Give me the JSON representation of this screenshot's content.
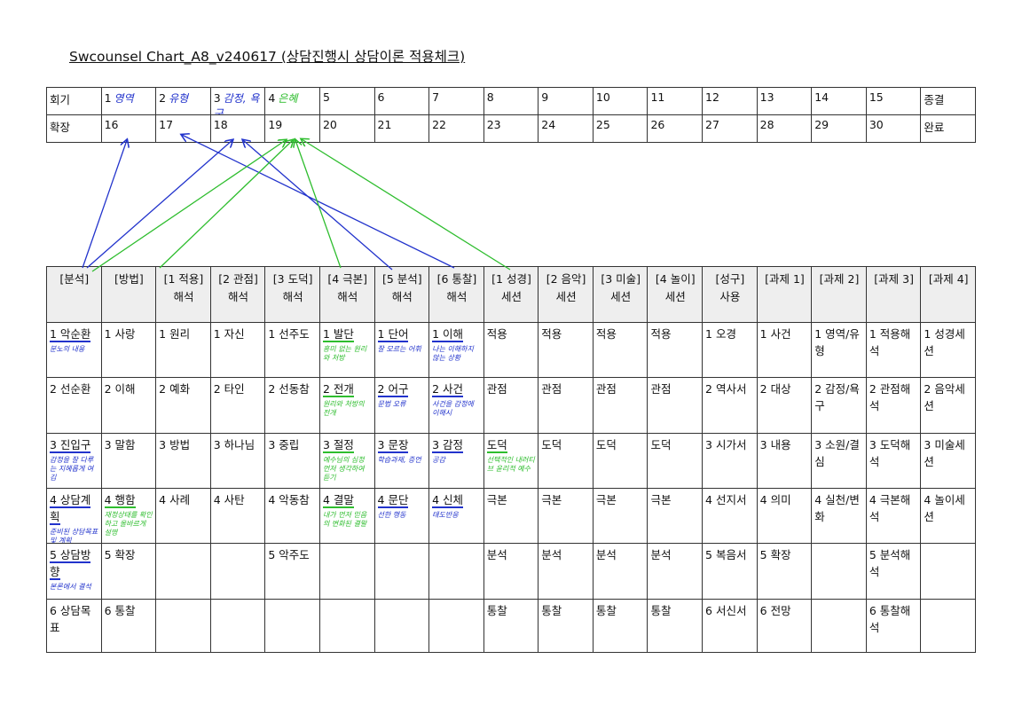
{
  "title": "Swcounsel Chart_A8_v240617 (상담진행시 상담이론 적용체크)",
  "colors": {
    "blue": "#2233cc",
    "green": "#2ebd2e"
  },
  "session_table": {
    "rows": [
      [
        {
          "text": "회기"
        },
        {
          "text": "1",
          "hand": "영역",
          "hand_color": "blue"
        },
        {
          "text": "2",
          "hand": "유형",
          "hand_color": "blue"
        },
        {
          "text": "3",
          "hand": "감정, 욕구",
          "hand_color": "blue"
        },
        {
          "text": "4",
          "hand": "은혜",
          "hand_color": "green"
        },
        {
          "text": "5"
        },
        {
          "text": "6"
        },
        {
          "text": "7"
        },
        {
          "text": "8"
        },
        {
          "text": "9"
        },
        {
          "text": "10"
        },
        {
          "text": "11"
        },
        {
          "text": "12"
        },
        {
          "text": "13"
        },
        {
          "text": "14"
        },
        {
          "text": "15"
        },
        {
          "text": "종결"
        }
      ],
      [
        {
          "text": "확장"
        },
        {
          "text": "16"
        },
        {
          "text": "17"
        },
        {
          "text": "18"
        },
        {
          "text": "19"
        },
        {
          "text": "20"
        },
        {
          "text": "21"
        },
        {
          "text": "22"
        },
        {
          "text": "23"
        },
        {
          "text": "24"
        },
        {
          "text": "25"
        },
        {
          "text": "26"
        },
        {
          "text": "27"
        },
        {
          "text": "28"
        },
        {
          "text": "29"
        },
        {
          "text": "30"
        },
        {
          "text": "완료"
        }
      ]
    ]
  },
  "main_table": {
    "header": [
      [
        "[분석]"
      ],
      [
        "[방법]"
      ],
      [
        "[1 적용]",
        "해석"
      ],
      [
        "[2 관점]",
        "해석"
      ],
      [
        "[3 도덕]",
        "해석"
      ],
      [
        "[4 극본]",
        "해석"
      ],
      [
        "[5 분석]",
        "해석"
      ],
      [
        "[6 통찰]",
        "해석"
      ],
      [
        "[1 성경]",
        "세션"
      ],
      [
        "[2 음악]",
        "세션"
      ],
      [
        "[3 미술]",
        "세션"
      ],
      [
        "[4 놀이]",
        "세션"
      ],
      [
        "[성구]",
        "사용"
      ],
      [
        "[과제 1]"
      ],
      [
        "[과제 2]"
      ],
      [
        "[과제 3]"
      ],
      [
        "[과제 4]"
      ]
    ],
    "rows": [
      [
        {
          "text": "1 악순환",
          "note": "분노의 내용",
          "note_color": "blue"
        },
        {
          "text": "1 사랑"
        },
        {
          "text": "1 원리"
        },
        {
          "text": "1 자신"
        },
        {
          "text": "1 선주도"
        },
        {
          "text": "1 발단",
          "note": "흥미 없는 원리와 처방",
          "note_color": "green"
        },
        {
          "text": "1 단어",
          "note": "잘 모르는 어휘",
          "note_color": "blue"
        },
        {
          "text": "1 이해",
          "note": "나는 이해하지 않는 상황",
          "note_color": "blue"
        },
        {
          "text": "적용"
        },
        {
          "text": "적용"
        },
        {
          "text": "적용"
        },
        {
          "text": "적용"
        },
        {
          "text": "1 오경"
        },
        {
          "text": "1 사건"
        },
        {
          "text": "1 영역/유형"
        },
        {
          "text": "1 적용해석"
        },
        {
          "text": "1 성경세션"
        }
      ],
      [
        {
          "text": "2 선순환"
        },
        {
          "text": "2 이해"
        },
        {
          "text": "2 예화"
        },
        {
          "text": "2 타인"
        },
        {
          "text": "2 선동참"
        },
        {
          "text": "2 전개",
          "note": "원리와 처방의 전개",
          "note_color": "green"
        },
        {
          "text": "2 어구",
          "note": "문법 오류",
          "note_color": "blue"
        },
        {
          "text": "2 사건",
          "note": "사건을 감정에 이해시",
          "note_color": "blue"
        },
        {
          "text": "관점"
        },
        {
          "text": "관점"
        },
        {
          "text": "관점"
        },
        {
          "text": "관점"
        },
        {
          "text": "2 역사서"
        },
        {
          "text": "2 대상"
        },
        {
          "text": "2 감정/욕구"
        },
        {
          "text": "2 관점해석"
        },
        {
          "text": "2 음악세션"
        }
      ],
      [
        {
          "text": "3 진입구",
          "note": "감정을 잘 다루는 지혜롭게 여김",
          "note_color": "blue"
        },
        {
          "text": "3 말함"
        },
        {
          "text": "3 방법"
        },
        {
          "text": "3 하나님"
        },
        {
          "text": "3 중립"
        },
        {
          "text": "3 절정",
          "note": "예수님의 심정 먼저 생각하여 듣기",
          "note_color": "green"
        },
        {
          "text": "3 문장",
          "note": "학습과제, 증언",
          "note_color": "blue"
        },
        {
          "text": "3 감정",
          "note": "공감",
          "note_color": "blue"
        },
        {
          "text": "도덕",
          "note": "선택적인 내러티브 윤리적 예수",
          "note_color": "green"
        },
        {
          "text": "도덕"
        },
        {
          "text": "도덕"
        },
        {
          "text": "도덕"
        },
        {
          "text": "3 시가서"
        },
        {
          "text": "3 내용"
        },
        {
          "text": "3 소원/결심"
        },
        {
          "text": "3 도덕해석"
        },
        {
          "text": "3 미술세션"
        }
      ],
      [
        {
          "text": "4 상담계획",
          "note": "준비된 상담목표 및 계획",
          "note_color": "blue"
        },
        {
          "text": "4 행함",
          "note": "재정상태를 확인하고 올바르게 설명",
          "note_color": "green"
        },
        {
          "text": "4 사례"
        },
        {
          "text": "4 사탄"
        },
        {
          "text": "4 악동참"
        },
        {
          "text": "4 결말",
          "note": "내가 먼저 믿음의 변화된 결말",
          "note_color": "green"
        },
        {
          "text": "4 문단",
          "note": "선한 행동",
          "note_color": "blue"
        },
        {
          "text": "4 신체",
          "note": "태도반응",
          "note_color": "blue"
        },
        {
          "text": "극본"
        },
        {
          "text": "극본"
        },
        {
          "text": "극본"
        },
        {
          "text": "극본"
        },
        {
          "text": "4 선지서"
        },
        {
          "text": "4 의미"
        },
        {
          "text": "4 실천/변화"
        },
        {
          "text": "4 극본해석"
        },
        {
          "text": "4 놀이세션"
        }
      ],
      [
        {
          "text": "5 상담방향",
          "note": "본론에서 결석",
          "note_color": "blue"
        },
        {
          "text": "5 확장"
        },
        null,
        null,
        {
          "text": "5 악주도"
        },
        null,
        null,
        null,
        {
          "text": "분석"
        },
        {
          "text": "분석"
        },
        {
          "text": "분석"
        },
        {
          "text": "분석"
        },
        {
          "text": "5 복음서"
        },
        {
          "text": "5 확장"
        },
        null,
        {
          "text": "5 분석해석"
        },
        null
      ],
      [
        {
          "text": "6 상담목표"
        },
        {
          "text": "6 통찰"
        },
        null,
        null,
        null,
        null,
        null,
        null,
        {
          "text": "통찰"
        },
        {
          "text": "통찰"
        },
        {
          "text": "통찰"
        },
        {
          "text": "통찰"
        },
        {
          "text": "6 서신서"
        },
        {
          "text": "6 전망"
        },
        null,
        {
          "text": "6 통찰해석"
        },
        null
      ]
    ]
  }
}
